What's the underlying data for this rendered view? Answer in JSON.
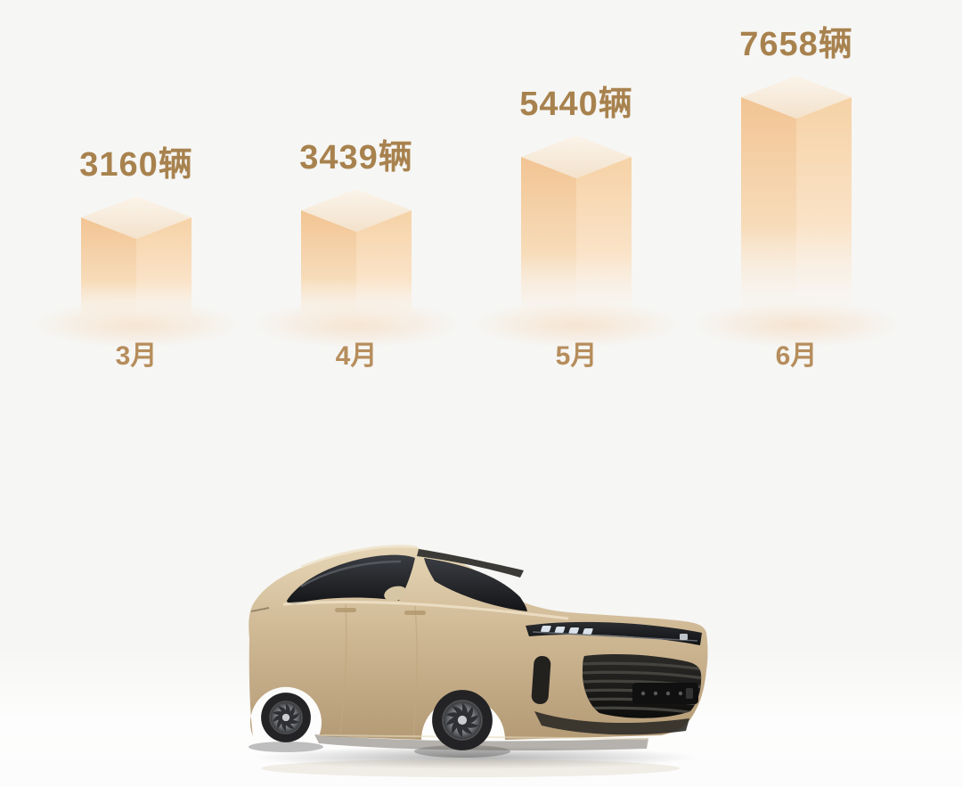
{
  "page": {
    "background": "#f6f6f4"
  },
  "colors": {
    "value_text": "#a8824e",
    "month_text": "#b68d5c",
    "bar_left": "#f2c493",
    "bar_left_mid": "#f7dcba",
    "bar_right": "#f6d2a6",
    "bar_right_mid": "#fae3c8",
    "bar_top_light": "#fbf4ea",
    "bar_top_dark": "#f3e2cc",
    "bar_fade": "#fbf7f2",
    "car_body": "#cdb694"
  },
  "chart_data": {
    "type": "bar",
    "title": "",
    "categories": [
      "3月",
      "4月",
      "5月",
      "6月"
    ],
    "values": [
      3160,
      3439,
      5440,
      7658
    ],
    "unit": "辆",
    "data_labels": [
      "3160辆",
      "3439辆",
      "5440辆",
      "7658辆"
    ],
    "xlabel": "",
    "ylabel": "",
    "ylim": [
      0,
      8000
    ],
    "grid": false,
    "legend": false,
    "bar_style": "3d-isometric-column, peach gradient fading to white at base"
  },
  "car": {
    "description": "champagne gold SUV, front three-quarter view facing right"
  }
}
